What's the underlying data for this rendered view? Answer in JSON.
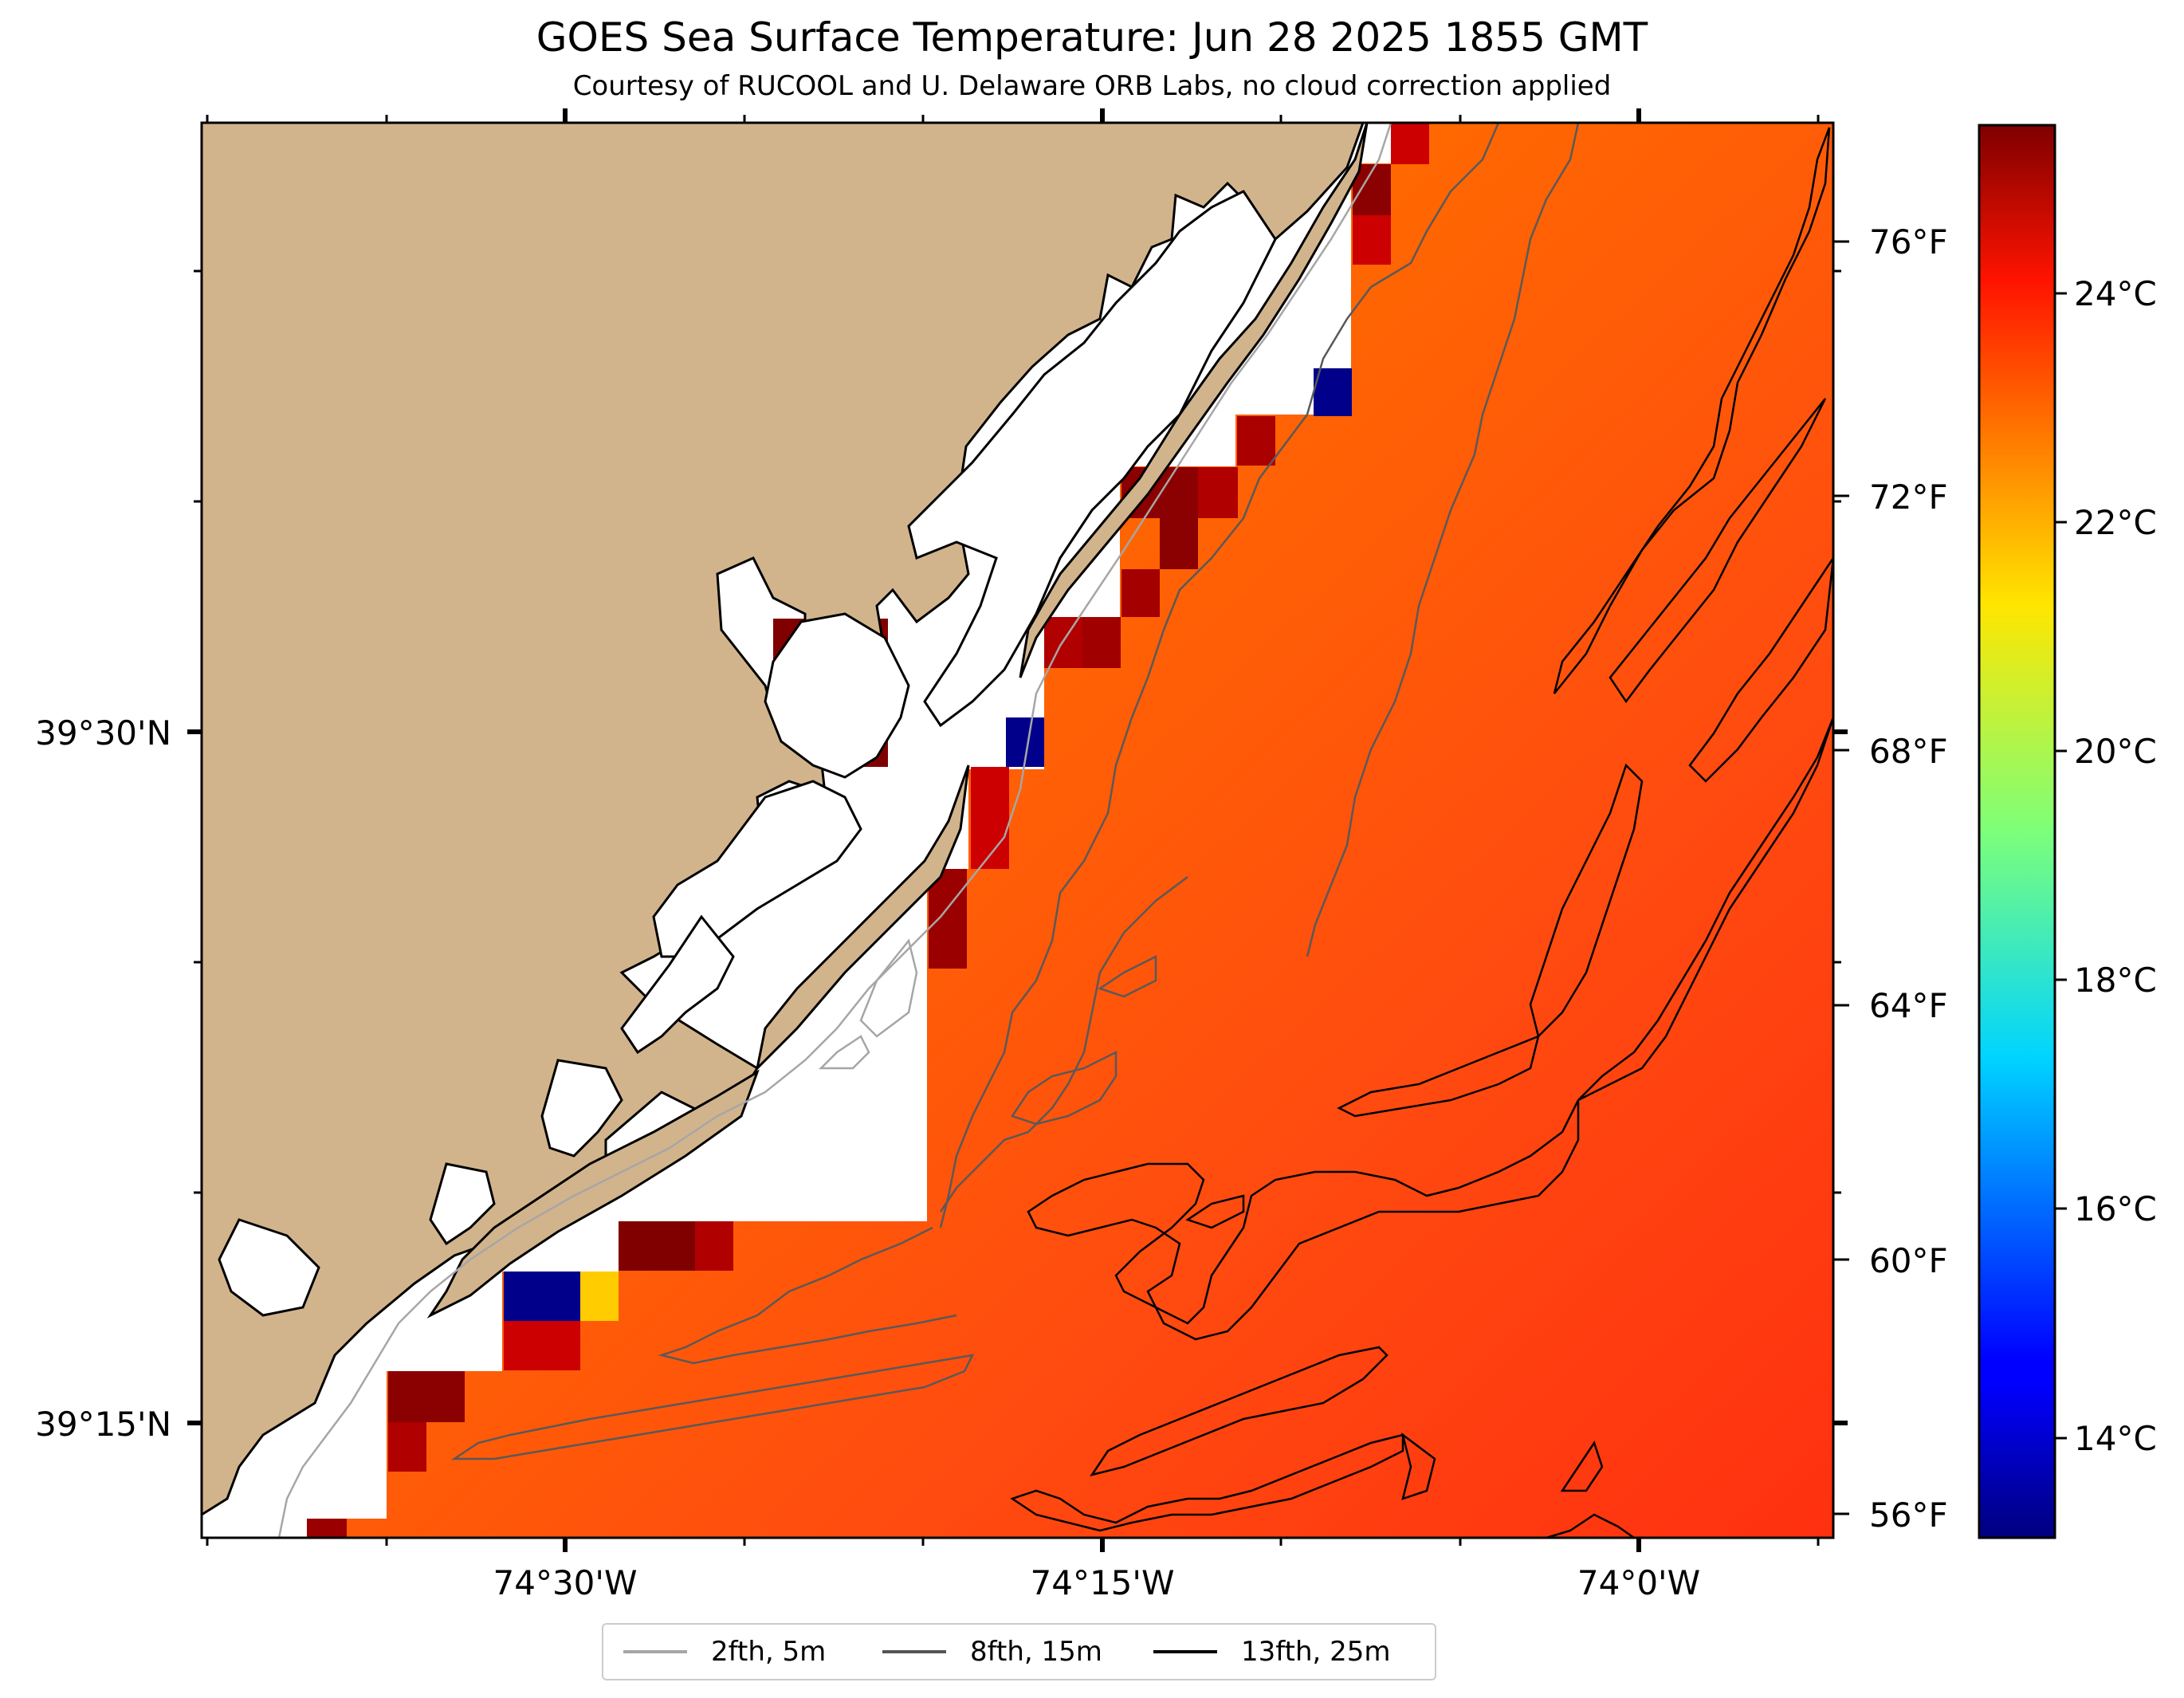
{
  "header": {
    "title": "GOES Sea Surface Temperature: Jun 28 2025 1855 GMT",
    "subtitle": "Courtesy of RUCOOL and U. Delaware ORB Labs, no cloud correction applied"
  },
  "map": {
    "lon_labels": [
      "74°30'W",
      "74°15'W",
      "74°0'W"
    ],
    "lat_labels": [
      "39°30'N",
      "39°15'N"
    ],
    "land_color": "#d2b48c",
    "coast_color": "#000000",
    "no_data_color": "#ffffff"
  },
  "colorbar": {
    "celsius_labels": [
      "24°C",
      "22°C",
      "20°C",
      "18°C",
      "16°C",
      "14°C"
    ],
    "fahrenheit_labels": [
      "76°F",
      "72°F",
      "68°F",
      "64°F",
      "60°F",
      "56°F"
    ],
    "colormap": "jet",
    "range_c": [
      12.8,
      25.6
    ]
  },
  "legend": {
    "items": [
      {
        "label": "2fth, 5m",
        "color": "#a6a6a6"
      },
      {
        "label": "8fth, 15m",
        "color": "#555555"
      },
      {
        "label": "13fth, 25m",
        "color": "#000000"
      }
    ]
  }
}
